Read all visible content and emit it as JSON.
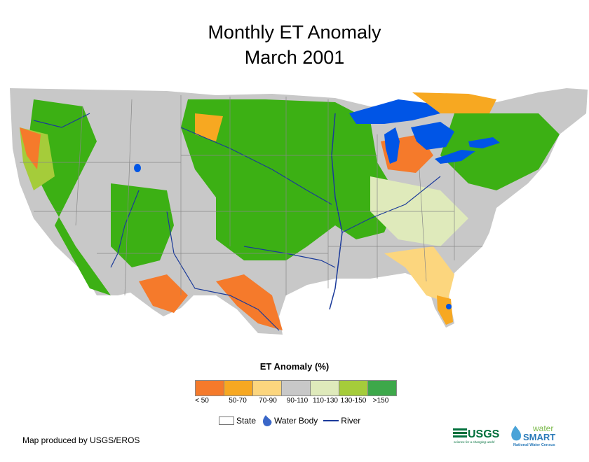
{
  "title": {
    "line1": "Monthly ET Anomaly",
    "line2": "March 2001"
  },
  "legend": {
    "title": "ET Anomaly (%)",
    "classes": [
      {
        "label": "< 50",
        "color": "#f57a2b"
      },
      {
        "label": "50-70",
        "color": "#f7a821"
      },
      {
        "label": "70-90",
        "color": "#fcd67e"
      },
      {
        "label": "90-110",
        "color": "#c8c8c8"
      },
      {
        "label": "110-130",
        "color": "#dfeabb"
      },
      {
        "label": "130-150",
        "color": "#a5cc3a"
      },
      {
        "label": ">150",
        "color": "#3da84a"
      }
    ]
  },
  "features": {
    "state": "State",
    "water_body": "Water Body",
    "river": "River"
  },
  "colors": {
    "water": "#0055e6",
    "river": "#1a3a9a",
    "state_line": "#888888",
    "green": "#3cb014"
  },
  "credit": "Map produced by USGS/EROS",
  "logos": {
    "usgs": "USGS",
    "usgs_tagline": "science for a changing world",
    "water": "water",
    "smart": "SMART",
    "census": "National Water Census"
  }
}
